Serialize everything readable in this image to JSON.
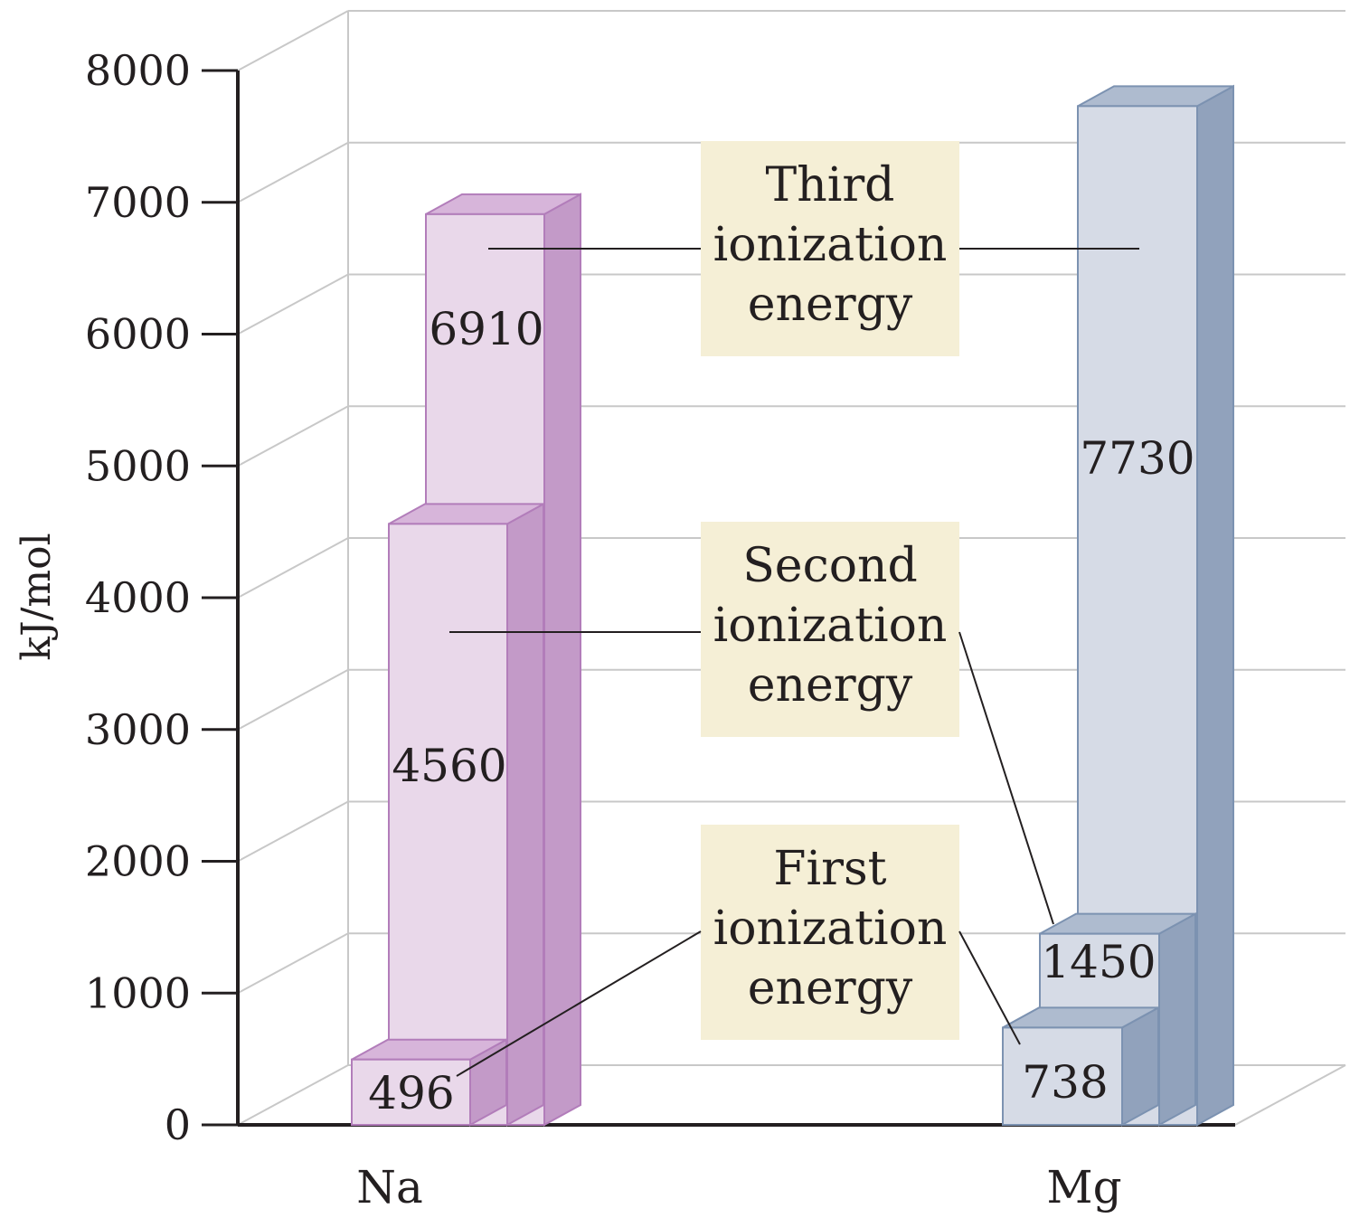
{
  "chart_data": {
    "type": "bar",
    "style": "3d-stacked",
    "ylabel": "kJ/mol",
    "ylim": [
      0,
      8000
    ],
    "yticks": [
      0,
      1000,
      2000,
      3000,
      4000,
      5000,
      6000,
      7000,
      8000
    ],
    "grid": true,
    "categories": [
      "Na",
      "Mg"
    ],
    "series": [
      {
        "name": "First ionization energy",
        "values": [
          496,
          738
        ]
      },
      {
        "name": "Second ionization energy",
        "values": [
          4560,
          1450
        ]
      },
      {
        "name": "Third ionization energy",
        "values": [
          6910,
          7730
        ]
      }
    ],
    "labels": [
      {
        "lines": [
          "Third",
          "ionization",
          "energy"
        ]
      },
      {
        "lines": [
          "Second",
          "ionization",
          "energy"
        ]
      },
      {
        "lines": [
          "First",
          "ionization",
          "energy"
        ]
      }
    ],
    "colors": {
      "Na": {
        "front": "#e9d8ea",
        "side": "#c39ac8",
        "top": "#d7b5da",
        "stroke": "#b27dba"
      },
      "Mg": {
        "front": "#d6dbe6",
        "side": "#91a2bc",
        "top": "#aebbcf",
        "stroke": "#7c92b1"
      },
      "label_box": "#f5efd6"
    }
  }
}
